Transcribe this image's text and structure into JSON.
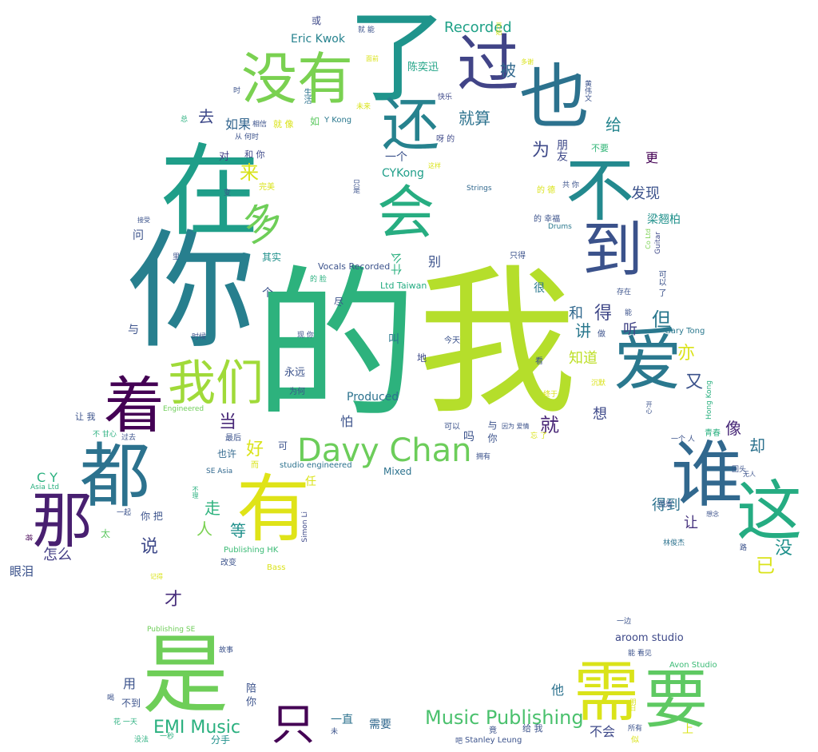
{
  "palette": {
    "background": "#ffffff",
    "colors": [
      "#440154",
      "#3b528b",
      "#21918c",
      "#5ec962",
      "#fde725"
    ]
  },
  "words": [
    {
      "text": "的",
      "color": "#2db27d"
    },
    {
      "text": "我",
      "color": "#b5de2b"
    },
    {
      "text": "你",
      "color": "#277f8e"
    },
    {
      "text": "在",
      "color": "#1f9e89"
    },
    {
      "text": "了",
      "color": "#1f948c"
    },
    {
      "text": "是",
      "color": "#6ece58"
    },
    {
      "text": "有",
      "color": "#dfe318"
    },
    {
      "text": "都",
      "color": "#2c728e"
    },
    {
      "text": "那",
      "color": "#481f70"
    },
    {
      "text": "着",
      "color": "#440154"
    },
    {
      "text": "谁",
      "color": "#31688e"
    },
    {
      "text": "这",
      "color": "#25ac82"
    },
    {
      "text": "爱",
      "color": "#2a788e"
    },
    {
      "text": "也",
      "color": "#2c728e"
    },
    {
      "text": "不",
      "color": "#23898e"
    },
    {
      "text": "到",
      "color": "#3b528b"
    },
    {
      "text": "没有",
      "color": "#7ad151"
    },
    {
      "text": "过",
      "color": "#414487"
    },
    {
      "text": "还",
      "color": "#26828e"
    },
    {
      "text": "会",
      "color": "#27ad81"
    },
    {
      "text": "我们",
      "color": "#a0da39"
    },
    {
      "text": "Davy Chan",
      "color": "#6ccd5a"
    },
    {
      "text": "需",
      "color": "#dae319"
    },
    {
      "text": "要",
      "color": "#5ec962"
    },
    {
      "text": "只",
      "color": "#440154"
    },
    {
      "text": "多",
      "color": "#6ece58"
    },
    {
      "text": "Music Publishing",
      "color": "#4ac16d"
    },
    {
      "text": "EMI Music",
      "color": "#2ab07f"
    },
    {
      "text": "Recorded",
      "color": "#1fa187"
    },
    {
      "text": "来",
      "color": "#d8e219"
    },
    {
      "text": "就算",
      "color": "#2c728e"
    },
    {
      "text": "如果",
      "color": "#32658e"
    },
    {
      "text": "去",
      "color": "#3e4989"
    },
    {
      "text": "为",
      "color": "#3e4989"
    },
    {
      "text": "被",
      "color": "#31688e"
    },
    {
      "text": "给",
      "color": "#25858e"
    },
    {
      "text": "发现",
      "color": "#3b528b"
    },
    {
      "text": "更",
      "color": "#440154"
    },
    {
      "text": "得",
      "color": "#3f4788"
    },
    {
      "text": "但",
      "color": "#2a788e"
    },
    {
      "text": "讲",
      "color": "#2a788e"
    },
    {
      "text": "和",
      "color": "#31688e"
    },
    {
      "text": "听",
      "color": "#414487"
    },
    {
      "text": "知道",
      "color": "#bddf26"
    },
    {
      "text": "亦",
      "color": "#dae319"
    },
    {
      "text": "又",
      "color": "#3b528b"
    },
    {
      "text": "就",
      "color": "#482576"
    },
    {
      "text": "想",
      "color": "#3e4989"
    },
    {
      "text": "像",
      "color": "#482878"
    },
    {
      "text": "却",
      "color": "#2c728e"
    },
    {
      "text": "让",
      "color": "#46327e"
    },
    {
      "text": "得到",
      "color": "#2c728e"
    },
    {
      "text": "没",
      "color": "#21918c"
    },
    {
      "text": "已",
      "color": "#dae319"
    },
    {
      "text": "当",
      "color": "#482878"
    },
    {
      "text": "好",
      "color": "#dae319"
    },
    {
      "text": "走",
      "color": "#2db27d"
    },
    {
      "text": "人",
      "color": "#7ad151"
    },
    {
      "text": "等",
      "color": "#21918c"
    },
    {
      "text": "说",
      "color": "#3e4989"
    },
    {
      "text": "怎么",
      "color": "#433e85"
    },
    {
      "text": "眼泪",
      "color": "#3b528b"
    },
    {
      "text": "才",
      "color": "#472d7b"
    },
    {
      "text": "用",
      "color": "#3b528b"
    },
    {
      "text": "他",
      "color": "#2c728e"
    },
    {
      "text": "不会",
      "color": "#3e4989"
    },
    {
      "text": "上",
      "color": "#dae319"
    },
    {
      "text": "一直",
      "color": "#2c728e"
    },
    {
      "text": "需要",
      "color": "#31688e"
    },
    {
      "text": "分手",
      "color": "#21918c"
    },
    {
      "text": "C Y",
      "color": "#2ab07f"
    },
    {
      "text": "CYKong",
      "color": "#1f9e89"
    },
    {
      "text": "Eric Kwok",
      "color": "#26828e"
    },
    {
      "text": "陈奕迅",
      "color": "#20a386"
    },
    {
      "text": "梁翘柏",
      "color": "#21918c"
    },
    {
      "text": "Produced",
      "color": "#2c728e"
    },
    {
      "text": "Vocals Recorded",
      "color": "#3b528b"
    },
    {
      "text": "Ltd Taiwan",
      "color": "#25ac82"
    },
    {
      "text": "studio engineered",
      "color": "#2c728e"
    },
    {
      "text": "Mixed",
      "color": "#2c728e"
    },
    {
      "text": "aroom studio",
      "color": "#3e4989"
    },
    {
      "text": "Avon Studio",
      "color": "#3bbb75"
    },
    {
      "text": "Gary Tong",
      "color": "#2a788e"
    },
    {
      "text": "Stanley Leung",
      "color": "#3b528b"
    },
    {
      "text": "SE Asia",
      "color": "#31688e"
    },
    {
      "text": "Publishing HK",
      "color": "#3bbb75"
    },
    {
      "text": "Publishing SE",
      "color": "#6ece58"
    },
    {
      "text": "Asia Ltd",
      "color": "#2ab07f"
    },
    {
      "text": "Strings",
      "color": "#31688e"
    },
    {
      "text": "Drums",
      "color": "#2a788e"
    },
    {
      "text": "Bass",
      "color": "#dae319"
    },
    {
      "text": "Engineered",
      "color": "#6ece58"
    },
    {
      "text": "Y Kong",
      "color": "#2a788e"
    },
    {
      "text": "Hong Kong",
      "color": "#2ab07f"
    },
    {
      "text": "Simon Li",
      "color": "#3e4989"
    },
    {
      "text": "Guitar",
      "color": "#3e4989"
    },
    {
      "text": "Co Ltd",
      "color": "#7ad151"
    },
    {
      "text": "林俊杰",
      "color": "#2c728e"
    },
    {
      "text": "什么",
      "color": "#2ab07f"
    },
    {
      "text": "别",
      "color": "#3b528b"
    },
    {
      "text": "一个",
      "color": "#3b528b"
    },
    {
      "text": "朋友",
      "color": "#3e4989"
    },
    {
      "text": "不要",
      "color": "#35b779"
    },
    {
      "text": "永远",
      "color": "#3b528b"
    },
    {
      "text": "其实",
      "color": "#21918c"
    },
    {
      "text": "问",
      "color": "#3b528b"
    },
    {
      "text": "对",
      "color": "#433e85"
    },
    {
      "text": "和 你",
      "color": "#3e4989"
    },
    {
      "text": "就 像",
      "color": "#dae319"
    },
    {
      "text": "如",
      "color": "#5ec962"
    },
    {
      "text": "相信",
      "color": "#3b528b"
    },
    {
      "text": "生活",
      "color": "#2c728e"
    },
    {
      "text": "快乐",
      "color": "#3e4989"
    },
    {
      "text": "呀 的",
      "color": "#3e4989"
    },
    {
      "text": "或",
      "color": "#3e4989"
    },
    {
      "text": "就 能",
      "color": "#3b528b"
    },
    {
      "text": "怕",
      "color": "#3b528b"
    },
    {
      "text": "也许",
      "color": "#31688e"
    },
    {
      "text": "最后",
      "color": "#3b528b"
    },
    {
      "text": "可",
      "color": "#3b528b"
    },
    {
      "text": "任",
      "color": "#dae319"
    },
    {
      "text": "叫",
      "color": "#2a788e"
    },
    {
      "text": "吗",
      "color": "#3b528b"
    },
    {
      "text": "可以",
      "color": "#3b528b"
    },
    {
      "text": "与",
      "color": "#3b528b"
    },
    {
      "text": "很",
      "color": "#2a788e"
    },
    {
      "text": "只得",
      "color": "#3b528b"
    },
    {
      "text": "今天",
      "color": "#3b528b"
    },
    {
      "text": "地",
      "color": "#3e4989"
    },
    {
      "text": "个",
      "color": "#3b528b"
    },
    {
      "text": "尽",
      "color": "#3b528b"
    },
    {
      "text": "为何",
      "color": "#3b528b"
    },
    {
      "text": "时候",
      "color": "#3b528b"
    },
    {
      "text": "现 你",
      "color": "#3b528b"
    },
    {
      "text": "让 我",
      "color": "#3b528b"
    },
    {
      "text": "不 甘心",
      "color": "#2ab07f"
    },
    {
      "text": "过去",
      "color": "#3b528b"
    },
    {
      "text": "你 把",
      "color": "#3b528b"
    },
    {
      "text": "一起",
      "color": "#3b528b"
    },
    {
      "text": "太",
      "color": "#5ec962"
    },
    {
      "text": "改变",
      "color": "#3b528b"
    },
    {
      "text": "故事",
      "color": "#3b528b"
    },
    {
      "text": "不到",
      "color": "#3b528b"
    },
    {
      "text": "花 一天",
      "color": "#2ab07f"
    },
    {
      "text": "没法",
      "color": "#2ab07f"
    },
    {
      "text": "一秒",
      "color": "#2ab07f"
    },
    {
      "text": "记得",
      "color": "#dae319"
    },
    {
      "text": "一边",
      "color": "#3b528b"
    },
    {
      "text": "能 看见",
      "color": "#3b528b"
    },
    {
      "text": "所有",
      "color": "#3b528b"
    },
    {
      "text": "似",
      "color": "#dae319"
    },
    {
      "text": "竟",
      "color": "#3b528b"
    },
    {
      "text": "给 我",
      "color": "#3b528b"
    },
    {
      "text": "拥有",
      "color": "#3b528b"
    },
    {
      "text": "回头",
      "color": "#3b528b"
    },
    {
      "text": "一个 人",
      "color": "#3b528b"
    },
    {
      "text": "青春",
      "color": "#2ab07f"
    },
    {
      "text": "但是",
      "color": "#3b528b"
    },
    {
      "text": "想念",
      "color": "#3b528b"
    },
    {
      "text": "路",
      "color": "#3b528b"
    },
    {
      "text": "无人",
      "color": "#3b528b"
    },
    {
      "text": "因为 爱情",
      "color": "#3b528b"
    },
    {
      "text": "的 幸福",
      "color": "#3b528b"
    },
    {
      "text": "共 你",
      "color": "#3b528b"
    },
    {
      "text": "的 德",
      "color": "#dae319"
    },
    {
      "text": "存在",
      "color": "#3b528b"
    },
    {
      "text": "可以 了",
      "color": "#3b528b"
    },
    {
      "text": "沉默",
      "color": "#dae319"
    },
    {
      "text": "看",
      "color": "#3b528b"
    },
    {
      "text": "终于",
      "color": "#dae319"
    },
    {
      "text": "做",
      "color": "#3b528b"
    },
    {
      "text": "能",
      "color": "#3b528b"
    },
    {
      "text": "从 何时",
      "color": "#3b528b"
    },
    {
      "text": "完美",
      "color": "#dae319"
    },
    {
      "text": "接受",
      "color": "#3b528b"
    },
    {
      "text": "这样",
      "color": "#dae319"
    },
    {
      "text": "而",
      "color": "#dae319"
    },
    {
      "text": "不理",
      "color": "#2ab07f"
    },
    {
      "text": "未来",
      "color": "#dae319"
    },
    {
      "text": "面前",
      "color": "#dae319"
    },
    {
      "text": "多谢",
      "color": "#dae319"
    },
    {
      "text": "总",
      "color": "#2ab07f"
    },
    {
      "text": "里",
      "color": "#3b528b"
    },
    {
      "text": "变",
      "color": "#3b528b"
    },
    {
      "text": "只是",
      "color": "#3b528b"
    },
    {
      "text": "的 脸",
      "color": "#2ab07f"
    },
    {
      "text": "时",
      "color": "#3b528b"
    },
    {
      "text": "黄伟文",
      "color": "#3b528b"
    },
    {
      "text": "开始",
      "color": "#dae319"
    },
    {
      "text": "吧",
      "color": "#3b528b"
    },
    {
      "text": "未",
      "color": "#3b528b"
    },
    {
      "text": "喝",
      "color": "#3b528b"
    },
    {
      "text": "陪 你",
      "color": "#3b528b"
    },
    {
      "text": "与 你",
      "color": "#3b528b"
    },
    {
      "text": "忘 了",
      "color": "#dae319"
    },
    {
      "text": "开心",
      "color": "#3b528b"
    },
    {
      "text": "明日",
      "color": "#dae319"
    },
    {
      "text": "将",
      "color": "#440154"
    }
  ]
}
